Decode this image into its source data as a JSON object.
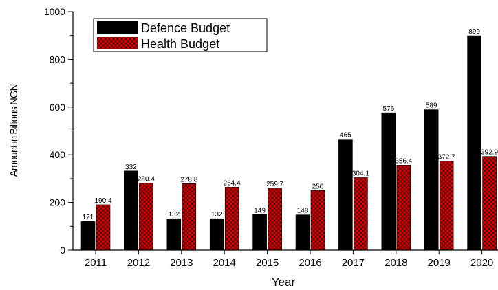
{
  "chart_data": {
    "type": "bar",
    "xlabel": "Year",
    "ylabel": "Amount in Billions NGN",
    "categories": [
      "2011",
      "2012",
      "2013",
      "2014",
      "2015",
      "2016",
      "2017",
      "2018",
      "2019",
      "2020"
    ],
    "series": [
      {
        "name": "Defence Budget",
        "color": "#000000",
        "values": [
          121,
          332,
          132,
          132,
          149,
          148,
          465,
          576,
          589,
          899
        ],
        "labels": [
          "121",
          "332",
          "132",
          "132",
          "149",
          "148",
          "465",
          "576",
          "589",
          "899"
        ]
      },
      {
        "name": "Health Budget",
        "color": "#e00000",
        "pattern": "crosshatch",
        "values": [
          190.4,
          280.4,
          278.8,
          264.4,
          259.7,
          250,
          304.1,
          356.4,
          372.7,
          392.9
        ],
        "labels": [
          "190.4",
          "280.4",
          "278.8",
          "264.4",
          "259.7",
          "250",
          "304.1",
          "356.4",
          "372.7",
          "392.9"
        ]
      }
    ],
    "ylim": [
      0,
      1000
    ],
    "yticks": [
      0,
      200,
      400,
      600,
      800,
      1000
    ],
    "legend_position": "top-left",
    "grid": false
  }
}
